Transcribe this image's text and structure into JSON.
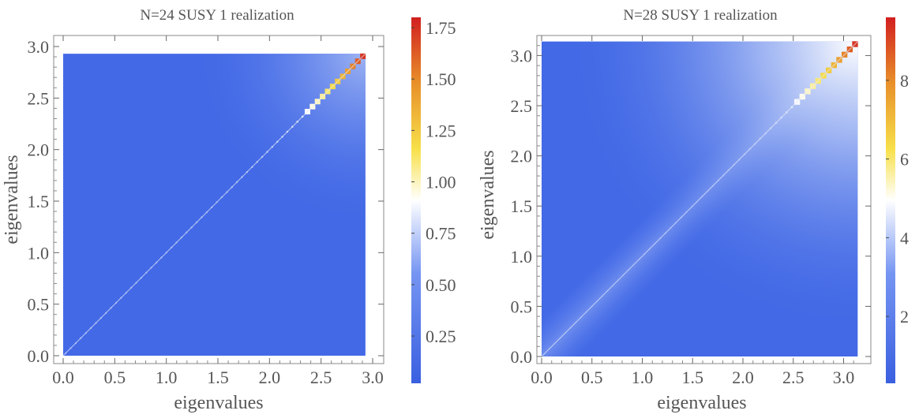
{
  "chart_data": [
    {
      "type": "heatmap",
      "title": "N=24 SUSY 1 realization",
      "xlabel": "eigenvalues",
      "ylabel": "eigenvalues",
      "xlim": [
        0.0,
        3.0
      ],
      "ylim": [
        0.0,
        3.0
      ],
      "data_extent": [
        0.0,
        2.93
      ],
      "x_ticks": [
        "0.0",
        "0.5",
        "1.0",
        "1.5",
        "2.0",
        "2.5",
        "3.0"
      ],
      "y_ticks": [
        "0.0",
        "0.5",
        "1.0",
        "1.5",
        "2.0",
        "2.5",
        "3.0"
      ],
      "colorbar": {
        "range": [
          0.02,
          1.8
        ],
        "ticks": [
          0.25,
          0.5,
          0.75,
          1.0,
          1.25,
          1.5,
          1.75
        ],
        "tick_labels": [
          "0.25",
          "0.50",
          "0.75",
          "1.00",
          "1.25",
          "1.50",
          "1.75"
        ],
        "colors": [
          "#3a5fe0",
          "#6f8ef0",
          "#ffffff",
          "#f7e04a",
          "#e8902a",
          "#d21f1f"
        ]
      },
      "background_value": 0.12,
      "diagonal_value_range": [
        0.55,
        1.8
      ]
    },
    {
      "type": "heatmap",
      "title": "N=28 SUSY 1 realization",
      "xlabel": "eigenvalues",
      "ylabel": "eigenvalues",
      "xlim": [
        0.0,
        3.2
      ],
      "ylim": [
        0.0,
        3.2
      ],
      "data_extent": [
        0.0,
        3.14
      ],
      "x_ticks": [
        "0.0",
        "0.5",
        "1.0",
        "1.5",
        "2.0",
        "2.5",
        "3.0"
      ],
      "y_ticks": [
        "0.0",
        "0.5",
        "1.0",
        "1.5",
        "2.0",
        "2.5",
        "3.0"
      ],
      "colorbar": {
        "range": [
          0.3,
          9.6
        ],
        "ticks": [
          2,
          4,
          6,
          8
        ],
        "tick_labels": [
          "2",
          "4",
          "6",
          "8"
        ],
        "colors": [
          "#3a5fe0",
          "#6f8ef0",
          "#ffffff",
          "#f7e04a",
          "#e8902a",
          "#d21f1f"
        ]
      },
      "background_value": 1.2,
      "diagonal_value_range": [
        3.0,
        9.6
      ]
    }
  ]
}
